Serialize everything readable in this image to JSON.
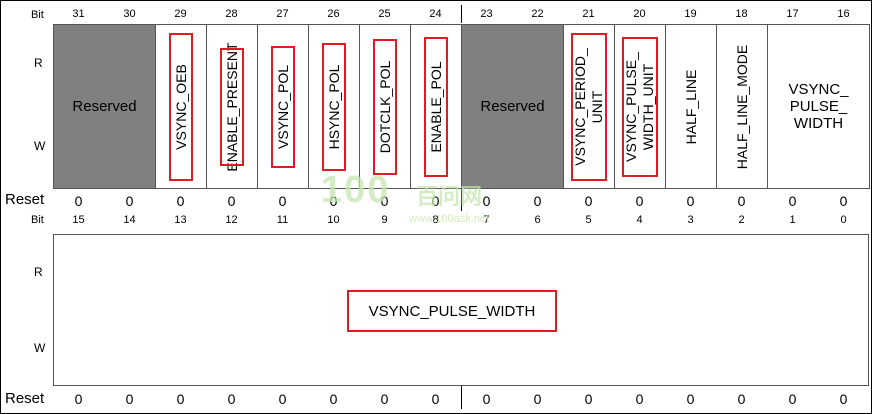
{
  "labels": {
    "bit": "Bit",
    "read": "R",
    "write": "W",
    "reset": "Reset"
  },
  "upper": {
    "bits": [
      "31",
      "30",
      "29",
      "28",
      "27",
      "26",
      "25",
      "24",
      "23",
      "22",
      "21",
      "20",
      "19",
      "18",
      "17",
      "16"
    ],
    "reset": [
      "0",
      "0",
      "0",
      "0",
      "0",
      "0",
      "0",
      "0",
      "0",
      "0",
      "0",
      "0",
      "0",
      "0",
      "0",
      "0"
    ],
    "fields": [
      {
        "name": "Reserved",
        "reserved": true,
        "highlight": false,
        "vertical": false
      },
      {
        "name": "VSYNC_OEB",
        "reserved": false,
        "highlight": true,
        "vertical": true
      },
      {
        "name": "ENABLE_PRESENT",
        "reserved": false,
        "highlight": true,
        "vertical": true
      },
      {
        "name": "VSYNC_POL",
        "reserved": false,
        "highlight": true,
        "vertical": true
      },
      {
        "name": "HSYNC_POL",
        "reserved": false,
        "highlight": true,
        "vertical": true
      },
      {
        "name": "DOTCLK_POL",
        "reserved": false,
        "highlight": true,
        "vertical": true
      },
      {
        "name": "ENABLE_POL",
        "reserved": false,
        "highlight": true,
        "vertical": true
      },
      {
        "name": "Reserved",
        "reserved": true,
        "highlight": false,
        "vertical": false
      },
      {
        "name": "VSYNC_PERIOD_\nUNIT",
        "reserved": false,
        "highlight": true,
        "vertical": true
      },
      {
        "name": "VSYNC_PULSE_\nWIDTH_UNIT",
        "reserved": false,
        "highlight": true,
        "vertical": true
      },
      {
        "name": "HALF_LINE",
        "reserved": false,
        "highlight": false,
        "vertical": true
      },
      {
        "name": "HALF_LINE_MODE",
        "reserved": false,
        "highlight": false,
        "vertical": true
      },
      {
        "name": "VSYNC_\nPULSE_\nWIDTH",
        "reserved": false,
        "highlight": false,
        "vertical": false
      }
    ]
  },
  "lower": {
    "bits": [
      "15",
      "14",
      "13",
      "12",
      "11",
      "10",
      "9",
      "8",
      "7",
      "6",
      "5",
      "4",
      "3",
      "2",
      "1",
      "0"
    ],
    "reset": [
      "0",
      "0",
      "0",
      "0",
      "0",
      "0",
      "0",
      "0",
      "0",
      "0",
      "0",
      "0",
      "0",
      "0",
      "0",
      "0"
    ],
    "field": {
      "name": "VSYNC_PULSE_WIDTH",
      "highlight": true
    }
  },
  "watermark": {
    "text": "百问网",
    "url": "www.100ask.net",
    "color": "#c6e6b0"
  }
}
